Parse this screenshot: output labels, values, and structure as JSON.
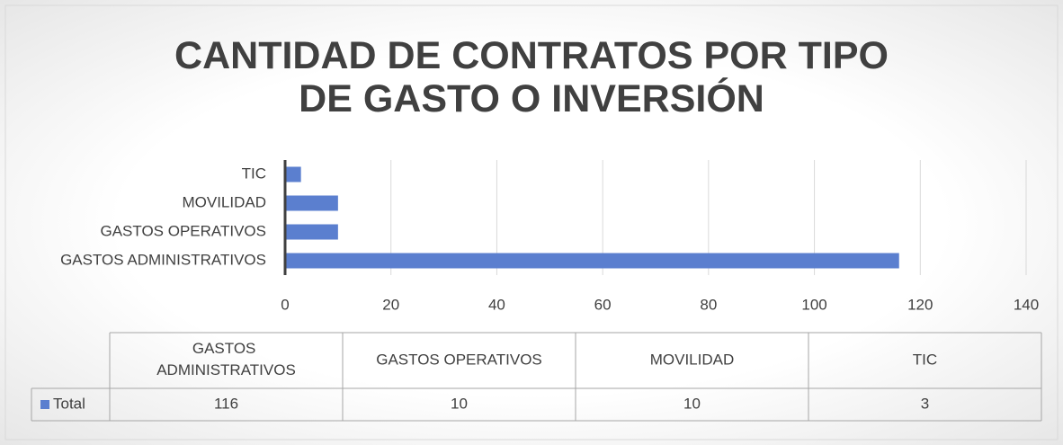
{
  "chart_data": {
    "type": "bar",
    "orientation": "horizontal",
    "title": "CANTIDAD DE CONTRATOS POR TIPO DE GASTO O INVERSIÓN",
    "categories": [
      "GASTOS ADMINISTRATIVOS",
      "GASTOS OPERATIVOS",
      "MOVILIDAD",
      "TIC"
    ],
    "series": [
      {
        "name": "Total",
        "color": "#5b7fcf",
        "values": [
          116,
          10,
          10,
          3
        ]
      }
    ],
    "xlim": [
      0,
      140
    ],
    "xticks": [
      0,
      20,
      40,
      60,
      80,
      100,
      120,
      140
    ],
    "grid": true,
    "data_table": true
  }
}
